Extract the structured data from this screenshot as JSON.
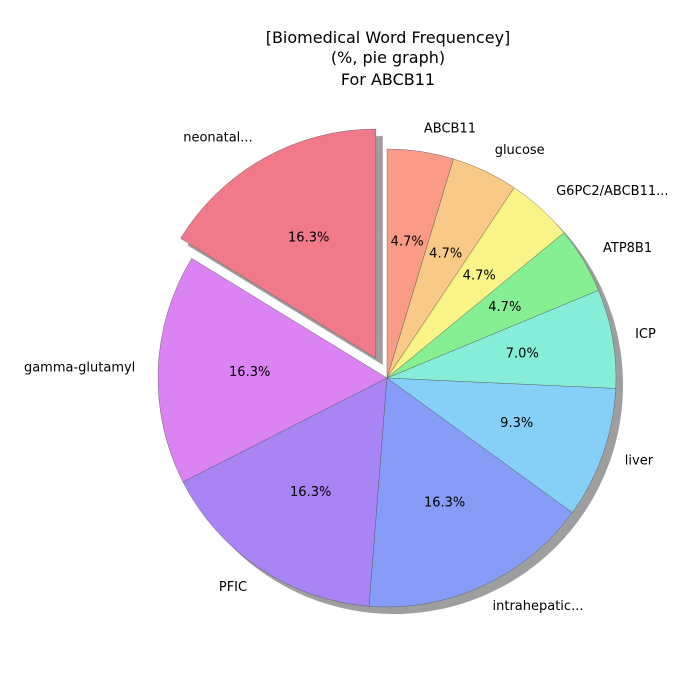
{
  "chart_data": {
    "type": "pie",
    "title_lines": [
      "[Biomedical Word Frequencey]",
      "(%, pie graph)",
      "For ABCB11"
    ],
    "categories": [
      "neonatal...",
      "gamma-glutamyl",
      "PFIC",
      "intrahepatic...",
      "liver",
      "ICP",
      "ATP8B1",
      "G6PC2/ABCB11...",
      "glucose",
      "ABCB11"
    ],
    "values": [
      16.3,
      16.3,
      16.3,
      16.3,
      9.3,
      7.0,
      4.7,
      4.7,
      4.7,
      4.7
    ],
    "value_labels": [
      "16.3%",
      "16.3%",
      "16.3%",
      "16.3%",
      "9.3%",
      "7.0%",
      "4.7%",
      "4.7%",
      "4.7%",
      "4.7%"
    ],
    "colors": [
      "#f07a8a",
      "#dc83f3",
      "#a884f4",
      "#879cf7",
      "#86d0f7",
      "#86eed8",
      "#86ef93",
      "#f9f487",
      "#f9c987",
      "#fa9b88"
    ],
    "exploded": "neonatal...",
    "start_angle_deg": 90,
    "direction": "counterclockwise",
    "shadow": true,
    "legend": "none"
  }
}
